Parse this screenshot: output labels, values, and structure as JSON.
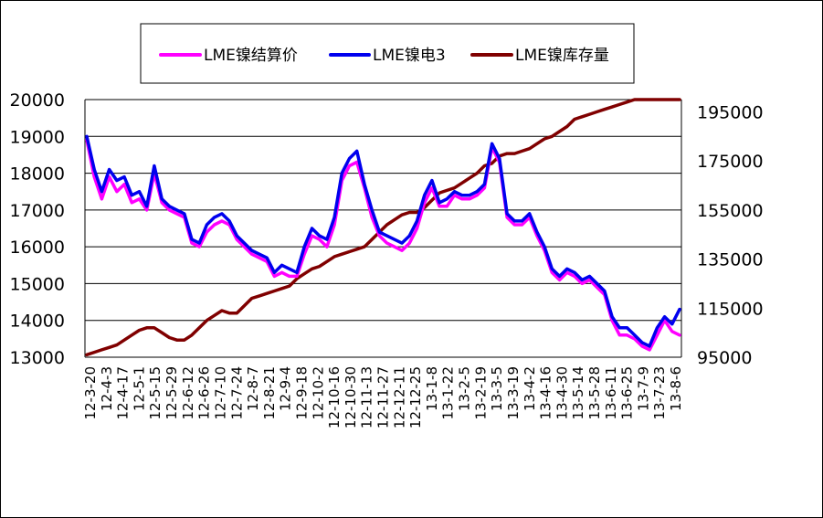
{
  "chart_data": {
    "type": "line",
    "title": "",
    "xlabel": "",
    "ylabel_left": "",
    "ylabel_right": "",
    "legend_position": "top",
    "grid": "horizontal",
    "y_left": {
      "min": 13000,
      "max": 20000,
      "ticks": [
        "13000",
        "14000",
        "15000",
        "16000",
        "17000",
        "18000",
        "19000",
        "20000"
      ]
    },
    "y_right": {
      "min": 95000,
      "max": 200000,
      "ticks": [
        "95000",
        "115000",
        "135000",
        "155000",
        "175000",
        "195000"
      ]
    },
    "x_tick_labels": [
      "12-3-20",
      "12-4-3",
      "12-4-17",
      "12-5-1",
      "12-5-15",
      "12-5-29",
      "12-6-12",
      "12-6-26",
      "12-7-10",
      "12-7-24",
      "12-8-7",
      "12-8-21",
      "12-9-4",
      "12-9-18",
      "12-10-2",
      "12-10-16",
      "12-10-30",
      "12-11-13",
      "12-11-27",
      "12-12-11",
      "12-12-25",
      "13-1-8",
      "13-1-22",
      "13-2-5",
      "13-2-19",
      "13-3-5",
      "13-3-19",
      "13-4-2",
      "13-4-16",
      "13-4-30",
      "13-5-14",
      "13-5-28",
      "13-6-11",
      "13-6-25",
      "13-7-9",
      "13-7-23",
      "13-8-6"
    ],
    "series": [
      {
        "name": "LME镍结算价",
        "axis": "left",
        "color": "#ff00ff",
        "values": [
          18900,
          17900,
          17300,
          17900,
          17500,
          17700,
          17200,
          17300,
          17000,
          18000,
          17200,
          17000,
          16900,
          16800,
          16100,
          16000,
          16400,
          16600,
          16700,
          16600,
          16200,
          16000,
          15800,
          15700,
          15600,
          15200,
          15300,
          15200,
          15200,
          15800,
          16300,
          16200,
          16000,
          16600,
          17800,
          18200,
          18300,
          17600,
          16800,
          16300,
          16100,
          16000,
          15900,
          16100,
          16500,
          17200,
          17600,
          17100,
          17100,
          17400,
          17300,
          17300,
          17400,
          17600,
          18700,
          18300,
          16800,
          16600,
          16600,
          16800,
          16300,
          15900,
          15300,
          15100,
          15300,
          15200,
          15000,
          15100,
          14900,
          14700,
          14000,
          13600,
          13600,
          13500,
          13300,
          13200,
          13600,
          14000,
          13700,
          13600
        ]
      },
      {
        "name": "LME镍电3",
        "axis": "left",
        "color": "#0000ee",
        "values": [
          19000,
          18100,
          17500,
          18100,
          17800,
          17900,
          17400,
          17500,
          17100,
          18200,
          17300,
          17100,
          17000,
          16900,
          16200,
          16100,
          16600,
          16800,
          16900,
          16700,
          16300,
          16100,
          15900,
          15800,
          15700,
          15300,
          15500,
          15400,
          15300,
          16000,
          16500,
          16300,
          16200,
          16800,
          18000,
          18400,
          18600,
          17700,
          17000,
          16400,
          16300,
          16200,
          16100,
          16300,
          16700,
          17400,
          17800,
          17200,
          17300,
          17500,
          17400,
          17400,
          17500,
          17700,
          18800,
          18400,
          16900,
          16700,
          16700,
          16900,
          16400,
          16000,
          15400,
          15200,
          15400,
          15300,
          15100,
          15200,
          15000,
          14800,
          14100,
          13800,
          13800,
          13600,
          13400,
          13300,
          13800,
          14100,
          13900,
          14300
        ]
      },
      {
        "name": "LME镍库存量",
        "axis": "right",
        "color": "#800000",
        "values": [
          96000,
          97000,
          98000,
          99000,
          100000,
          102000,
          104000,
          106000,
          107000,
          107000,
          105000,
          103000,
          102000,
          102000,
          104000,
          107000,
          110000,
          112000,
          114000,
          113000,
          113000,
          116000,
          119000,
          120000,
          121000,
          122000,
          123000,
          124000,
          127000,
          129000,
          131000,
          132000,
          134000,
          136000,
          137000,
          138000,
          139000,
          140000,
          143000,
          146000,
          149000,
          151000,
          153000,
          154000,
          154000,
          156000,
          159000,
          162000,
          163000,
          164000,
          166000,
          168000,
          170000,
          173000,
          174000,
          177000,
          178000,
          178000,
          179000,
          180000,
          182000,
          184000,
          185000,
          187000,
          189000,
          192000,
          193000,
          194000,
          195000,
          196000,
          197000,
          198000,
          199000,
          200000,
          200000,
          200000,
          200000,
          200000,
          200000,
          200000
        ]
      }
    ]
  }
}
